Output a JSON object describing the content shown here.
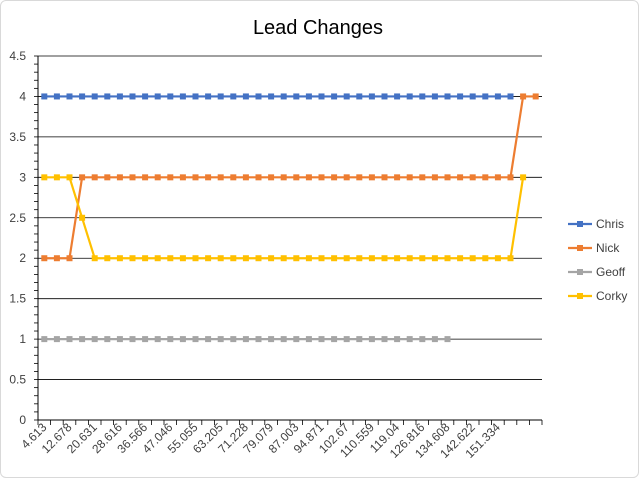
{
  "chart_data": {
    "type": "line",
    "title": "Lead Changes",
    "xlabel": "",
    "ylabel": "",
    "ylim": [
      0,
      4.5
    ],
    "yticks": [
      0,
      0.5,
      1,
      1.5,
      2,
      2.5,
      3,
      3.5,
      4,
      4.5
    ],
    "grid": "horizontal",
    "legend_position": "right",
    "x": [
      "4.613",
      "8.6455",
      "12.678",
      "16.6545",
      "20.631",
      "24.6235",
      "28.616",
      "32.591",
      "36.566",
      "41.806",
      "47.046",
      "51.0505",
      "55.055",
      "59.13",
      "63.205",
      "67.2165",
      "71.228",
      "75.1535",
      "79.079",
      "83.041",
      "87.003",
      "90.937",
      "94.871",
      "98.7705",
      "102.67",
      "106.6145",
      "110.559",
      "114.7995",
      "119.04",
      "122.928",
      "126.816",
      "130.712",
      "134.608",
      "138.615",
      "142.622",
      "146.978",
      "151.334",
      "155.69",
      "160.046",
      "164.402"
    ],
    "x_tick_labels": [
      "4.613",
      "12.678",
      "20.631",
      "28.616",
      "36.566",
      "47.046",
      "55.055",
      "63.205",
      "71.228",
      "79.079",
      "87.003",
      "94.871",
      "102.67",
      "110.559",
      "119.04",
      "126.816",
      "134.608",
      "142.622",
      "151.334"
    ],
    "series": [
      {
        "name": "Chris",
        "color": "#4472c4",
        "values": [
          4,
          4,
          4,
          4,
          4,
          4,
          4,
          4,
          4,
          4,
          4,
          4,
          4,
          4,
          4,
          4,
          4,
          4,
          4,
          4,
          4,
          4,
          4,
          4,
          4,
          4,
          4,
          4,
          4,
          4,
          4,
          4,
          4,
          4,
          4,
          4,
          4,
          4,
          null,
          null
        ]
      },
      {
        "name": "Nick",
        "color": "#ed7d31",
        "values": [
          2,
          2,
          2,
          3,
          3,
          3,
          3,
          3,
          3,
          3,
          3,
          3,
          3,
          3,
          3,
          3,
          3,
          3,
          3,
          3,
          3,
          3,
          3,
          3,
          3,
          3,
          3,
          3,
          3,
          3,
          3,
          3,
          3,
          3,
          3,
          3,
          3,
          3,
          4,
          4
        ]
      },
      {
        "name": "Geoff",
        "color": "#a5a5a5",
        "values": [
          1,
          1,
          1,
          1,
          1,
          1,
          1,
          1,
          1,
          1,
          1,
          1,
          1,
          1,
          1,
          1,
          1,
          1,
          1,
          1,
          1,
          1,
          1,
          1,
          1,
          1,
          1,
          1,
          1,
          1,
          1,
          1,
          1,
          null,
          null,
          null,
          null,
          null,
          null,
          null
        ]
      },
      {
        "name": "Corky",
        "color": "#ffc000",
        "values": [
          3,
          3,
          3,
          2.5,
          2,
          2,
          2,
          2,
          2,
          2,
          2,
          2,
          2,
          2,
          2,
          2,
          2,
          2,
          2,
          2,
          2,
          2,
          2,
          2,
          2,
          2,
          2,
          2,
          2,
          2,
          2,
          2,
          2,
          2,
          2,
          2,
          2,
          2,
          3,
          null
        ]
      }
    ]
  }
}
